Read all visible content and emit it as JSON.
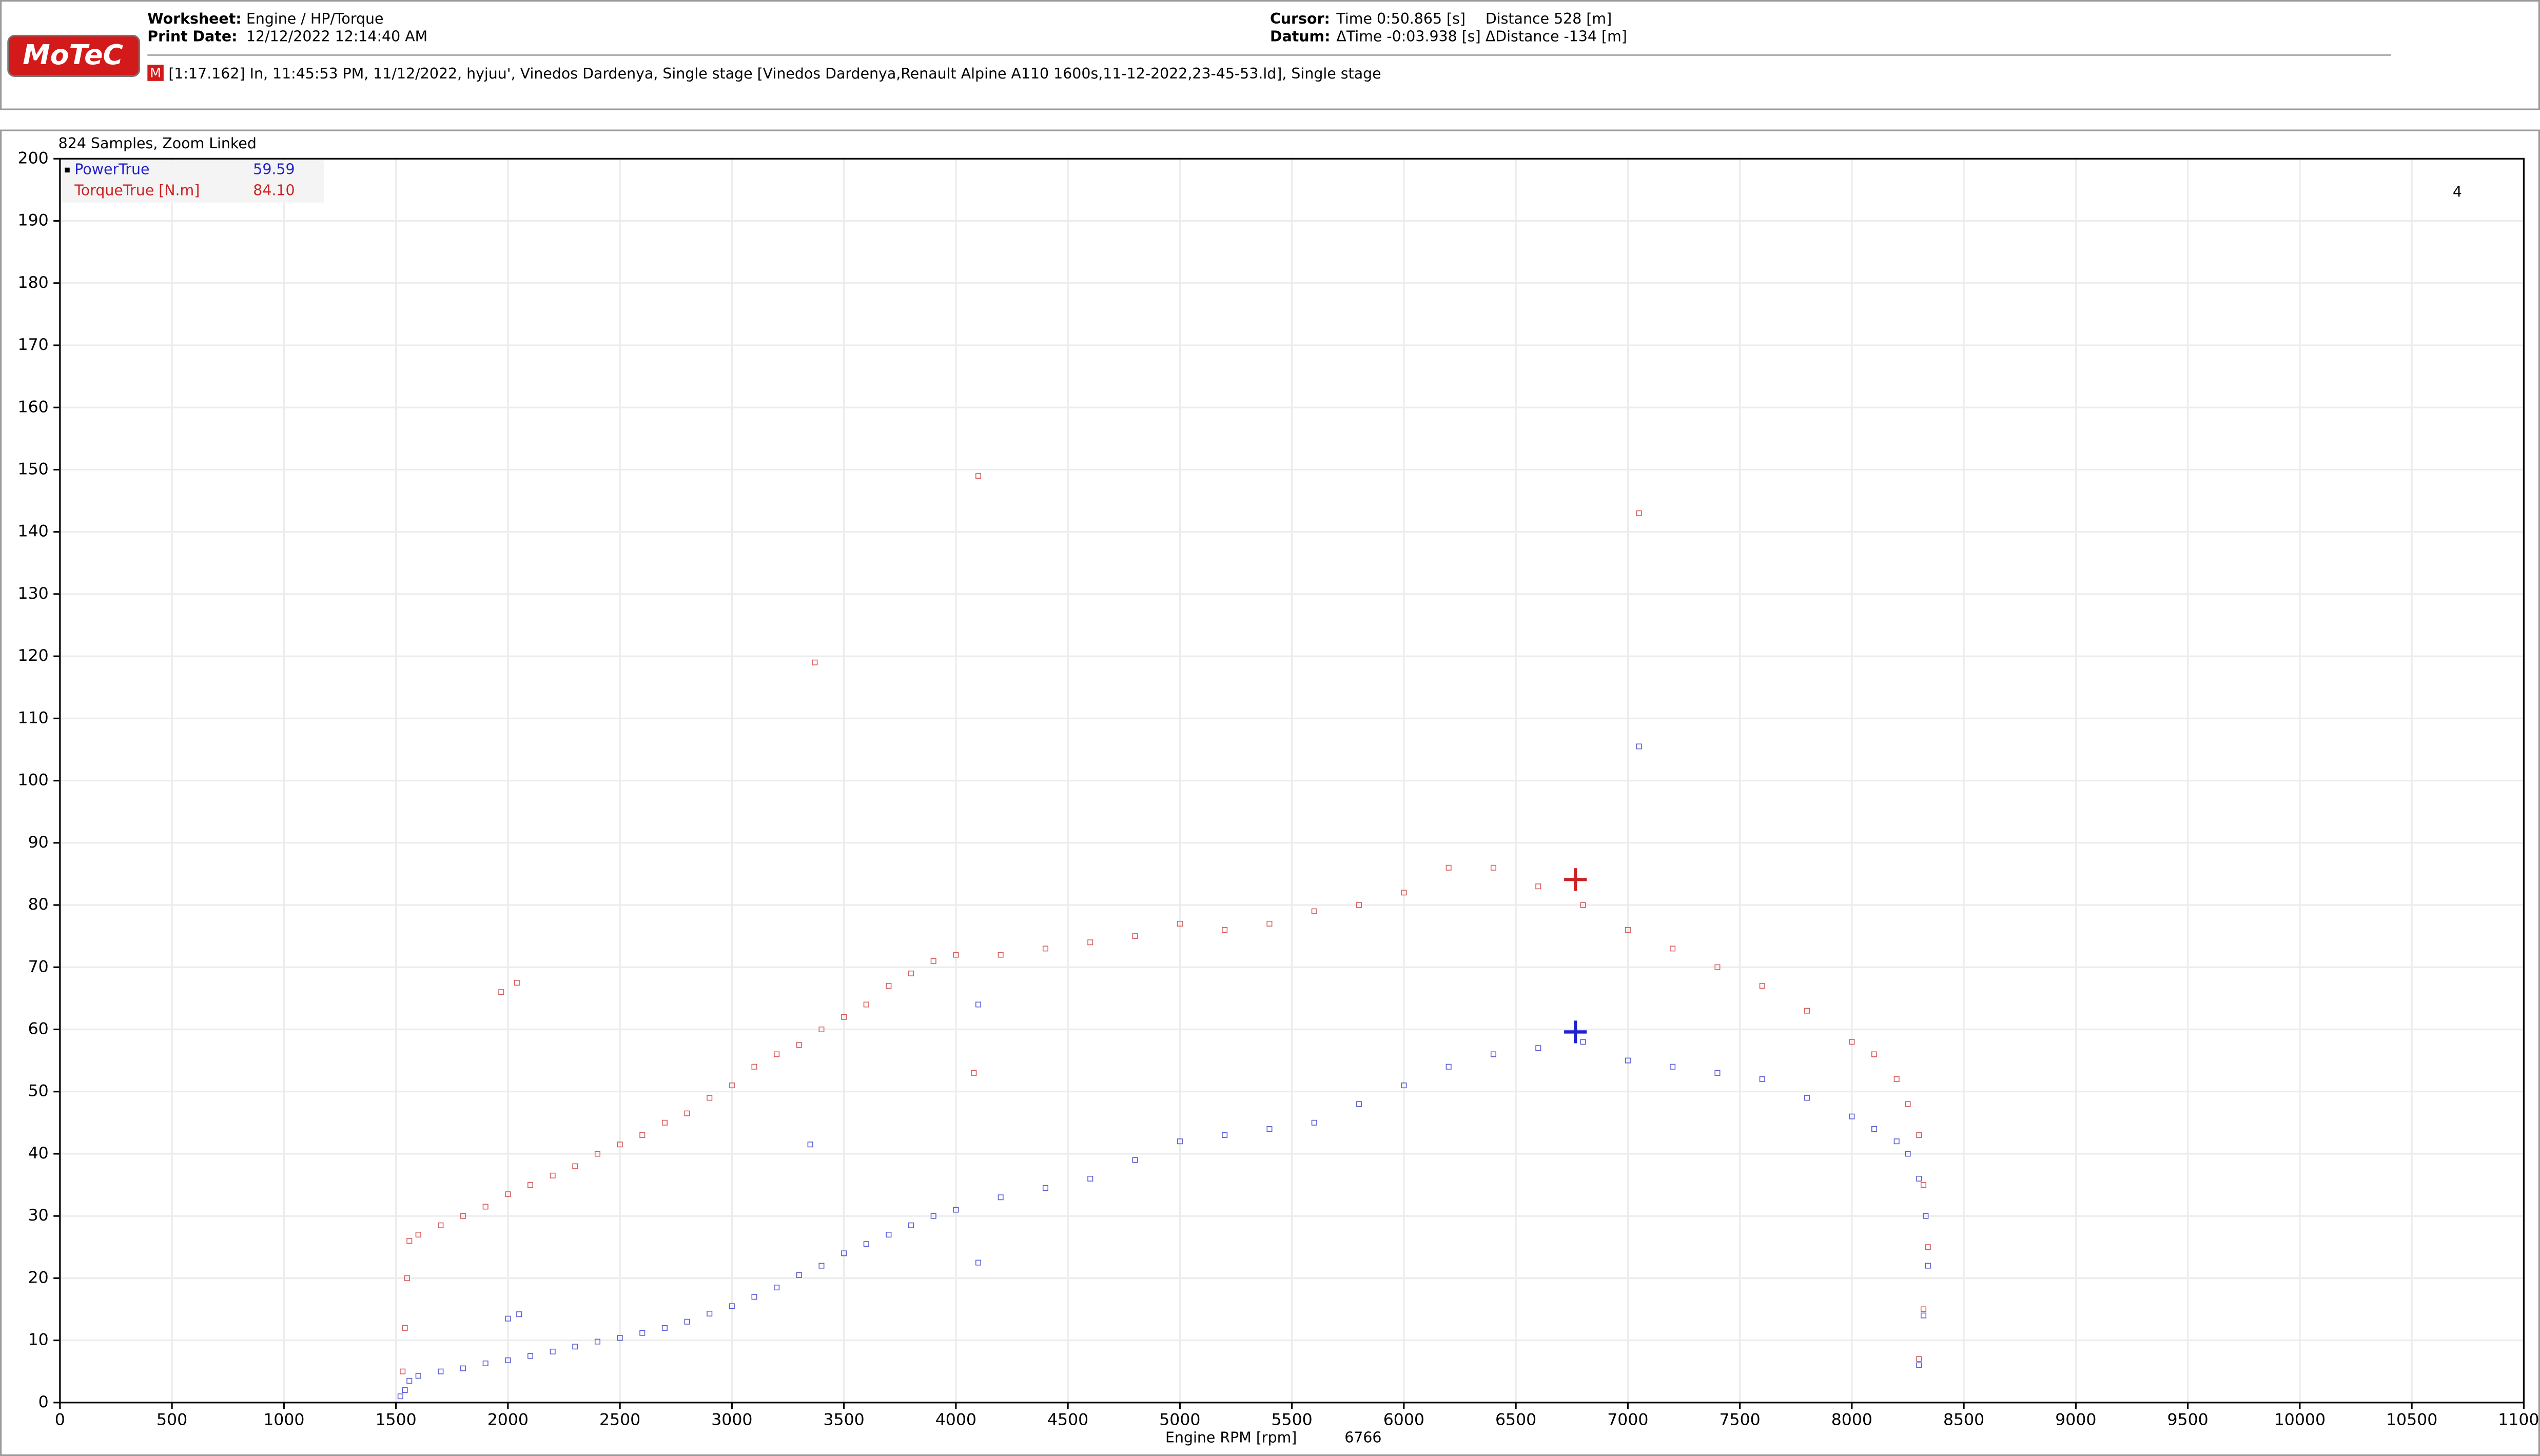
{
  "header": {
    "logo": "MoTeC",
    "worksheet_label": "Worksheet:",
    "worksheet": "Engine / HP/Torque",
    "print_date_label": "Print Date:",
    "print_date": "12/12/2022 12:14:40 AM",
    "cursor_label": "Cursor:",
    "cursor_time": "Time  0:50.865 [s]",
    "cursor_distance": "Distance  528 [m]",
    "datum_label": "Datum:",
    "datum_time": "ΔTime  -0:03.938 [s]",
    "datum_distance": "ΔDistance  -134 [m]",
    "session_badge": "M",
    "session": "[1:17.162] In, 11:45:53 PM, 11/12/2022, hyjuu', Vinedos Dardenya, Single stage [Vinedos Dardenya,Renault Alpine A110 1600s,11-12-2022,23-45-53.ld], Single stage"
  },
  "chart_data": {
    "type": "scatter",
    "title": "824 Samples, Zoom Linked",
    "x_label": "Engine RPM [rpm]",
    "cursor_x": 6766,
    "corner_label": "4",
    "xlim": [
      0,
      11000
    ],
    "xticks": [
      0,
      500,
      1000,
      1500,
      2000,
      2500,
      3000,
      3500,
      4000,
      4500,
      5000,
      5500,
      6000,
      6500,
      7000,
      7500,
      8000,
      8500,
      9000,
      9500,
      10000,
      10500,
      11000
    ],
    "ylim": [
      0,
      200
    ],
    "yticks": [
      0,
      10,
      20,
      30,
      40,
      50,
      60,
      70,
      80,
      90,
      100,
      110,
      120,
      130,
      140,
      150,
      160,
      170,
      180,
      190,
      200
    ],
    "grid": true,
    "series": [
      {
        "name": "PowerTrue",
        "color": "#2222cc",
        "cursor_value": {
          "value": 59.59,
          "label": "59.59"
        },
        "x": [
          1520,
          1540,
          1560,
          1600,
          1700,
          1800,
          1900,
          2000,
          2100,
          2200,
          2300,
          2400,
          2500,
          2600,
          2700,
          2800,
          2900,
          3000,
          3100,
          3200,
          3300,
          3400,
          3500,
          3600,
          3700,
          3800,
          3900,
          4000,
          4200,
          4400,
          4600,
          4800,
          5000,
          5200,
          5400,
          5600,
          5800,
          6000,
          6200,
          6400,
          6600,
          6800,
          7000,
          7200,
          7400,
          7600,
          7800,
          8000,
          8100,
          8200,
          8250,
          8300,
          8330,
          8340,
          8320,
          8300,
          2000,
          2050,
          3350,
          4100,
          4100,
          7050
        ],
        "values": [
          1,
          2,
          3.5,
          4.3,
          5,
          5.5,
          6.3,
          6.8,
          7.5,
          8.2,
          9,
          9.8,
          10.4,
          11.2,
          12,
          13,
          14.3,
          15.5,
          17,
          18.5,
          20.5,
          22,
          24,
          25.5,
          27,
          28.5,
          30,
          31,
          33,
          34.5,
          36,
          39,
          42,
          43,
          44,
          45,
          48,
          51,
          54,
          56,
          57,
          58,
          55,
          54,
          53,
          52,
          49,
          46,
          44,
          42,
          40,
          36,
          30,
          22,
          14,
          6,
          13.5,
          14.2,
          41.5,
          22.5,
          64,
          105.5
        ]
      },
      {
        "name": "TorqueTrue [N.m]",
        "color": "#cc2222",
        "cursor_value": {
          "value": 84.1,
          "label": "84.10"
        },
        "x": [
          1530,
          1540,
          1550,
          1560,
          1600,
          1700,
          1800,
          1900,
          2000,
          2100,
          2200,
          2300,
          2400,
          2500,
          2600,
          2700,
          2800,
          2900,
          3000,
          3100,
          3200,
          3300,
          3400,
          3500,
          3600,
          3700,
          3800,
          3900,
          4000,
          4200,
          4400,
          4600,
          4800,
          5000,
          5200,
          5400,
          5600,
          5800,
          6000,
          6200,
          6400,
          6600,
          6800,
          7000,
          7200,
          7400,
          7600,
          7800,
          8000,
          8100,
          8200,
          8250,
          8300,
          8320,
          8340,
          8320,
          8300,
          1970,
          2040,
          3370,
          4100,
          4080,
          7050
        ],
        "values": [
          5,
          12,
          20,
          26,
          27,
          28.5,
          30,
          31.5,
          33.5,
          35,
          36.5,
          38,
          40,
          41.5,
          43,
          45,
          46.5,
          49,
          51,
          54,
          56,
          57.5,
          60,
          62,
          64,
          67,
          69,
          71,
          72,
          72,
          73,
          74,
          75,
          77,
          76,
          77,
          79,
          80,
          82,
          86,
          86,
          83,
          80,
          76,
          73,
          70,
          67,
          63,
          58,
          56,
          52,
          48,
          43,
          35,
          25,
          15,
          7,
          66,
          67.5,
          119,
          149,
          53,
          143
        ]
      }
    ]
  }
}
